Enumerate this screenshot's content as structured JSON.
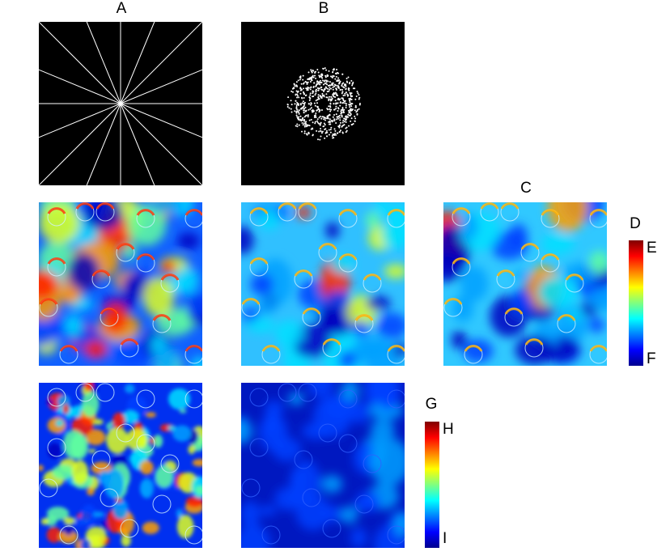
{
  "labels": {
    "column_a": "A",
    "column_b": "B",
    "column_c": "C"
  },
  "colorbar_top": {
    "title": "D",
    "max_label": "E",
    "min_label": "F"
  },
  "colorbar_bottom": {
    "title": "G",
    "max_label": "H",
    "min_label": "I"
  }
}
